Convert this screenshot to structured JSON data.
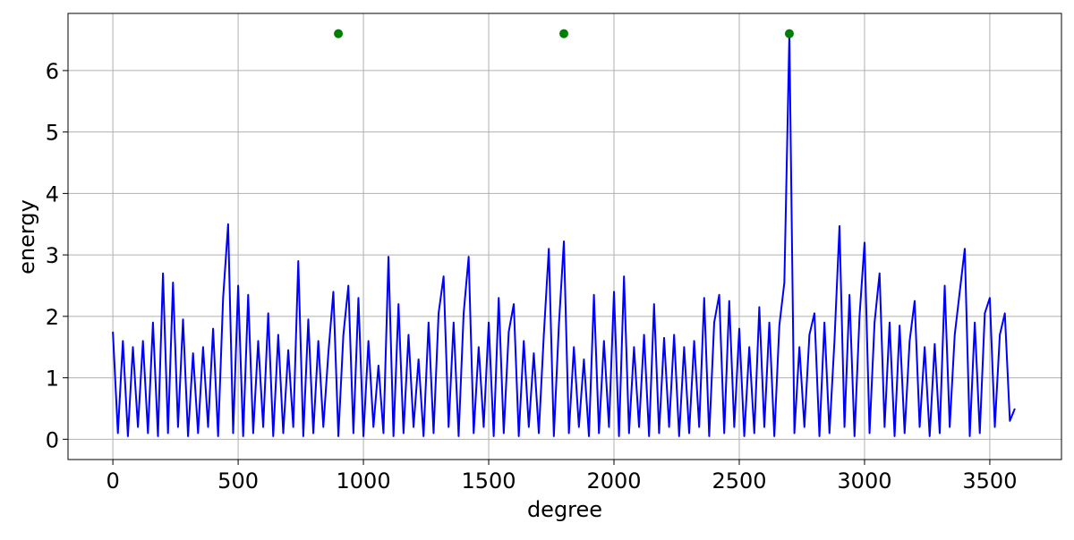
{
  "chart_data": {
    "type": "line",
    "xlabel": "degree",
    "ylabel": "energy",
    "xlim": [
      -179,
      3786
    ],
    "ylim": [
      -0.33,
      6.93
    ],
    "xticks": [
      0,
      500,
      1000,
      1500,
      2000,
      2500,
      3000,
      3500
    ],
    "yticks": [
      0,
      1,
      2,
      3,
      4,
      5,
      6
    ],
    "grid": true,
    "series": [
      {
        "type": "line",
        "color": "#0000ff",
        "x": [
          0,
          20,
          40,
          60,
          80,
          100,
          120,
          140,
          160,
          180,
          200,
          220,
          240,
          260,
          280,
          300,
          320,
          340,
          360,
          380,
          400,
          420,
          440,
          460,
          480,
          500,
          520,
          540,
          560,
          580,
          600,
          620,
          640,
          660,
          680,
          700,
          720,
          740,
          760,
          780,
          800,
          820,
          840,
          860,
          880,
          900,
          920,
          940,
          960,
          980,
          1000,
          1020,
          1040,
          1060,
          1080,
          1100,
          1120,
          1140,
          1160,
          1180,
          1200,
          1220,
          1240,
          1260,
          1280,
          1300,
          1320,
          1340,
          1360,
          1380,
          1400,
          1420,
          1440,
          1460,
          1480,
          1500,
          1520,
          1540,
          1560,
          1580,
          1600,
          1620,
          1640,
          1660,
          1680,
          1700,
          1720,
          1740,
          1760,
          1780,
          1800,
          1820,
          1840,
          1860,
          1880,
          1900,
          1920,
          1940,
          1960,
          1980,
          2000,
          2020,
          2040,
          2060,
          2080,
          2100,
          2120,
          2140,
          2160,
          2180,
          2200,
          2220,
          2240,
          2260,
          2280,
          2300,
          2320,
          2340,
          2360,
          2380,
          2400,
          2420,
          2440,
          2460,
          2480,
          2500,
          2520,
          2540,
          2560,
          2580,
          2600,
          2620,
          2640,
          2660,
          2680,
          2700,
          2720,
          2740,
          2760,
          2780,
          2800,
          2820,
          2840,
          2860,
          2880,
          2900,
          2920,
          2940,
          2960,
          2980,
          3000,
          3020,
          3040,
          3060,
          3080,
          3100,
          3120,
          3140,
          3160,
          3180,
          3200,
          3220,
          3240,
          3260,
          3280,
          3300,
          3320,
          3340,
          3360,
          3380,
          3400,
          3420,
          3440,
          3460,
          3480,
          3500,
          3520,
          3540,
          3560,
          3580,
          3600
        ],
        "values": [
          1.75,
          0.1,
          1.6,
          0.05,
          1.5,
          0.2,
          1.6,
          0.1,
          1.9,
          0.05,
          2.7,
          0.1,
          2.55,
          0.2,
          1.95,
          0.05,
          1.4,
          0.1,
          1.5,
          0.2,
          1.8,
          0.05,
          2.3,
          3.5,
          0.1,
          2.5,
          0.05,
          2.35,
          0.1,
          1.6,
          0.2,
          2.05,
          0.05,
          1.7,
          0.1,
          1.45,
          0.2,
          2.9,
          0.05,
          1.95,
          0.1,
          1.6,
          0.2,
          1.4,
          2.4,
          0.05,
          1.7,
          2.5,
          0.1,
          2.3,
          0.05,
          1.6,
          0.2,
          1.2,
          0.1,
          2.97,
          0.05,
          2.2,
          0.1,
          1.7,
          0.2,
          1.3,
          0.05,
          1.9,
          0.1,
          2.05,
          2.65,
          0.2,
          1.9,
          0.05,
          2.05,
          2.97,
          0.1,
          1.5,
          0.2,
          1.9,
          0.05,
          2.3,
          0.1,
          1.75,
          2.2,
          0.05,
          1.6,
          0.2,
          1.4,
          0.1,
          1.7,
          3.1,
          0.05,
          1.85,
          3.22,
          0.1,
          1.5,
          0.2,
          1.3,
          0.05,
          2.35,
          0.1,
          1.6,
          0.2,
          2.4,
          0.05,
          2.65,
          0.1,
          1.5,
          0.2,
          1.7,
          0.05,
          2.2,
          0.1,
          1.65,
          0.2,
          1.7,
          0.05,
          1.5,
          0.1,
          1.6,
          0.2,
          2.3,
          0.05,
          1.9,
          2.35,
          0.1,
          2.25,
          0.2,
          1.8,
          0.05,
          1.5,
          0.1,
          2.15,
          0.2,
          1.9,
          0.05,
          1.85,
          2.55,
          6.6,
          0.1,
          1.5,
          0.2,
          1.7,
          2.05,
          0.05,
          1.9,
          0.1,
          1.6,
          3.47,
          0.2,
          2.35,
          0.05,
          2.0,
          3.2,
          0.1,
          1.9,
          2.7,
          0.2,
          1.9,
          0.05,
          1.85,
          0.1,
          1.6,
          2.25,
          0.2,
          1.5,
          0.05,
          1.55,
          0.1,
          2.5,
          0.2,
          1.7,
          2.4,
          3.1,
          0.05,
          1.9,
          0.1,
          2.05,
          2.3,
          0.2,
          1.7,
          2.05,
          0.3,
          0.5
        ]
      },
      {
        "type": "scatter",
        "color": "#008000",
        "x": [
          900,
          1800,
          2700
        ],
        "values": [
          6.6,
          6.6,
          6.6
        ]
      }
    ]
  }
}
